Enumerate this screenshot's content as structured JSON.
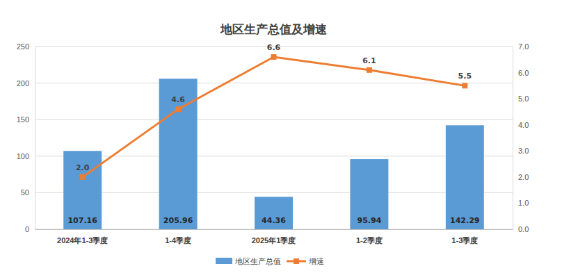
{
  "chart_data": {
    "type": "bar",
    "title": "地区生产总值及增速",
    "categories": [
      "2024年1-3季度",
      "1-4季度",
      "2025年1季度",
      "1-2季度",
      "1-3季度"
    ],
    "series": [
      {
        "name": "地区生产总值",
        "type": "bar",
        "color": "#5b9bd5",
        "values": [
          107.16,
          205.96,
          44.36,
          95.94,
          142.29
        ]
      },
      {
        "name": "增速",
        "type": "line",
        "color": "#ed7d31",
        "marker": "square",
        "axis": "y2",
        "values": [
          2.0,
          4.6,
          6.6,
          6.1,
          5.5
        ],
        "value_labels": [
          "2.0",
          "4.6",
          "6.6",
          "6.1",
          "5.5"
        ]
      }
    ],
    "ylim": [
      0,
      250
    ],
    "yticks": [
      0,
      50,
      100,
      150,
      200,
      250
    ],
    "y2lim": [
      0,
      7
    ],
    "y2ticks": [
      {
        "value": 0,
        "label": "0.0"
      },
      {
        "value": 1,
        "label": "1.0"
      },
      {
        "value": 2,
        "label": "2.0"
      },
      {
        "value": 3,
        "label": "3.0"
      },
      {
        "value": 4,
        "label": "4.0"
      },
      {
        "value": 5,
        "label": "5.0"
      },
      {
        "value": 6,
        "label": "6.0"
      },
      {
        "value": 7,
        "label": "7.0"
      }
    ],
    "grid": true,
    "legend": "bottom",
    "data_labels": true
  }
}
